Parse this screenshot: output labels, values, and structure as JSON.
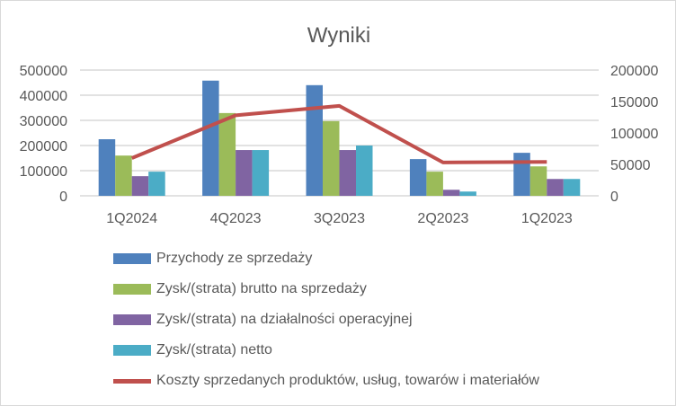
{
  "chart_data": {
    "type": "bar",
    "title": "Wyniki",
    "categories": [
      "1Q2024",
      "4Q2023",
      "3Q2023",
      "2Q2023",
      "1Q2023"
    ],
    "y_left": {
      "range": [
        0,
        500000
      ],
      "ticks": [
        "0",
        "100000",
        "200000",
        "300000",
        "400000",
        "500000"
      ]
    },
    "y_right": {
      "range": [
        0,
        200000
      ],
      "ticks": [
        "0",
        "50000",
        "100000",
        "150000",
        "200000"
      ]
    },
    "grid": true,
    "legend_position": "bottom",
    "series": [
      {
        "name": "Przychody ze sprzedaży",
        "type": "bar",
        "axis": "left",
        "color": "#4f81bd",
        "values": [
          225000,
          458000,
          440000,
          146000,
          171000
        ]
      },
      {
        "name": "Zysk/(strata) brutto na sprzedaży",
        "type": "bar",
        "axis": "left",
        "color": "#9bbb59",
        "values": [
          160000,
          329000,
          297000,
          96000,
          117000
        ]
      },
      {
        "name": "Zysk/(strata) na działalności operacyjnej",
        "type": "bar",
        "axis": "left",
        "color": "#8064a2",
        "values": [
          78000,
          182000,
          182000,
          24000,
          67000
        ]
      },
      {
        "name": "Zysk/(strata) netto",
        "type": "bar",
        "axis": "left",
        "color": "#4bacc6",
        "values": [
          96000,
          182000,
          200000,
          17000,
          67000
        ]
      },
      {
        "name": "Koszty sprzedanych produktów, usług, towarów i materiałów",
        "type": "line",
        "axis": "right",
        "color": "#c0504d",
        "values": [
          60000,
          128000,
          143000,
          53000,
          54000
        ]
      }
    ]
  }
}
